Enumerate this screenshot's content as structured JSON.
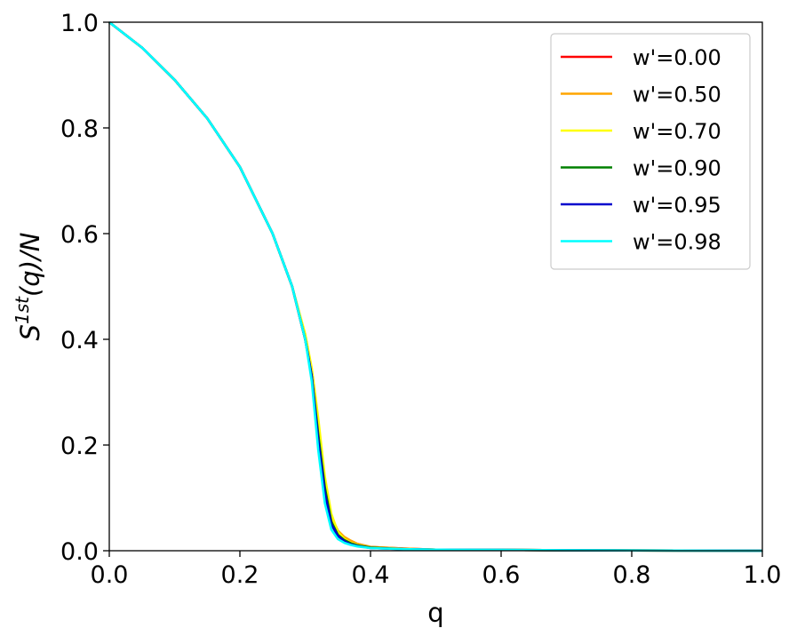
{
  "chart_data": {
    "type": "line",
    "xlabel": "q",
    "ylabel": {
      "base": "S",
      "sup": "1st",
      "rest": "(q)/N"
    },
    "xlim": [
      0.0,
      1.0
    ],
    "ylim": [
      0.0,
      1.0
    ],
    "xticks": [
      "0.0",
      "0.2",
      "0.4",
      "0.6",
      "0.8",
      "1.0"
    ],
    "yticks": [
      "0.0",
      "0.2",
      "0.4",
      "0.6",
      "0.8",
      "1.0"
    ],
    "grid": false,
    "legend_position": "top-right",
    "x": [
      0.0,
      0.05,
      0.1,
      0.15,
      0.2,
      0.25,
      0.28,
      0.3,
      0.31,
      0.32,
      0.33,
      0.34,
      0.35,
      0.36,
      0.37,
      0.38,
      0.4,
      0.45,
      0.5,
      0.6,
      0.8,
      1.0
    ],
    "series": [
      {
        "name": "w'=0.00",
        "color": "#ff0000",
        "values": [
          1.0,
          0.952,
          0.891,
          0.818,
          0.726,
          0.6,
          0.5,
          0.4,
          0.33,
          0.22,
          0.12,
          0.06,
          0.035,
          0.025,
          0.018,
          0.013,
          0.007,
          0.004,
          0.002,
          0.0015,
          0.0005,
          0.0
        ]
      },
      {
        "name": "w'=0.50",
        "color": "#ffa500",
        "values": [
          1.0,
          0.952,
          0.891,
          0.818,
          0.726,
          0.6,
          0.5,
          0.4,
          0.33,
          0.23,
          0.13,
          0.065,
          0.038,
          0.026,
          0.019,
          0.013,
          0.007,
          0.004,
          0.002,
          0.0015,
          0.0005,
          0.0
        ]
      },
      {
        "name": "w'=0.70",
        "color": "#ffff00",
        "values": [
          1.0,
          0.952,
          0.891,
          0.818,
          0.726,
          0.6,
          0.5,
          0.41,
          0.345,
          0.25,
          0.14,
          0.07,
          0.035,
          0.022,
          0.015,
          0.011,
          0.006,
          0.003,
          0.002,
          0.0015,
          0.0005,
          0.0
        ]
      },
      {
        "name": "w'=0.90",
        "color": "#008000",
        "values": [
          1.0,
          0.952,
          0.891,
          0.818,
          0.726,
          0.6,
          0.5,
          0.4,
          0.33,
          0.22,
          0.12,
          0.055,
          0.03,
          0.02,
          0.014,
          0.01,
          0.006,
          0.003,
          0.002,
          0.0015,
          0.0005,
          0.0
        ]
      },
      {
        "name": "w'=0.95",
        "color": "#0000cd",
        "values": [
          1.0,
          0.952,
          0.891,
          0.818,
          0.726,
          0.6,
          0.5,
          0.4,
          0.33,
          0.21,
          0.11,
          0.05,
          0.028,
          0.018,
          0.012,
          0.009,
          0.005,
          0.003,
          0.002,
          0.0015,
          0.0005,
          0.0
        ]
      },
      {
        "name": "w'=0.98",
        "color": "#00ffff",
        "values": [
          1.0,
          0.952,
          0.891,
          0.818,
          0.726,
          0.6,
          0.5,
          0.4,
          0.32,
          0.19,
          0.09,
          0.04,
          0.022,
          0.015,
          0.011,
          0.008,
          0.005,
          0.003,
          0.002,
          0.0015,
          0.0005,
          0.0
        ]
      }
    ]
  }
}
